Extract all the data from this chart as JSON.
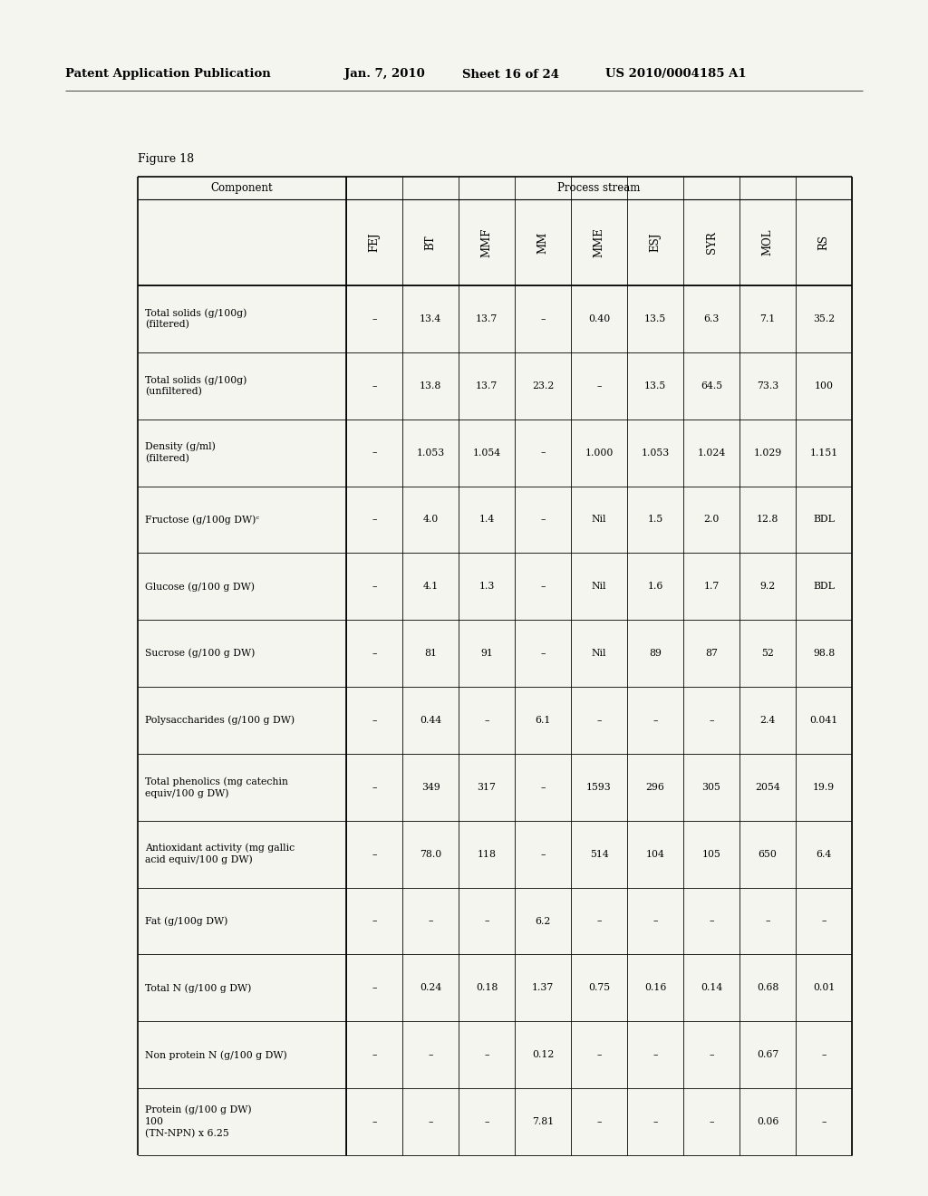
{
  "header_line1": "Patent Application Publication",
  "header_date": "Jan. 7, 2010",
  "header_sheet": "Sheet 16 of 24",
  "header_patent": "US 2010/0004185 A1",
  "figure_label": "Figure 18",
  "col_keys": [
    "FEJ",
    "BT",
    "MMF",
    "MM",
    "MME",
    "ESJ",
    "SYR",
    "MOL",
    "RS"
  ],
  "rows": [
    {
      "component_lines": [
        "Total solids (g/100g)",
        "(filtered)"
      ],
      "FEJ": "-",
      "BT": "13.4",
      "MMF": "13.7",
      "MM": "-",
      "MME": "0.40",
      "ESJ": "13.5",
      "SYR": "6.3",
      "MOL": "7.1",
      "RS": "35.2"
    },
    {
      "component_lines": [
        "Total solids (g/100g)",
        "(unfiltered)"
      ],
      "FEJ": "-",
      "BT": "13.8",
      "MMF": "13.7",
      "MM": "23.2",
      "MME": "-",
      "ESJ": "13.5",
      "SYR": "64.5",
      "MOL": "73.3",
      "RS": "100"
    },
    {
      "component_lines": [
        "Density (g/ml)",
        "(filtered)"
      ],
      "FEJ": "-",
      "BT": "1.053",
      "MMF": "1.054",
      "MM": "-",
      "MME": "1.000",
      "ESJ": "1.053",
      "SYR": "1.024",
      "MOL": "1.029",
      "RS": "1.151"
    },
    {
      "component_lines": [
        "Fructose (g/100g DW)ᶜ"
      ],
      "FEJ": "-",
      "BT": "4.0",
      "MMF": "1.4",
      "MM": "-",
      "MME": "Nil",
      "ESJ": "1.5",
      "SYR": "2.0",
      "MOL": "12.8",
      "RS": "BDL"
    },
    {
      "component_lines": [
        "Glucose (g/100 g DW)"
      ],
      "FEJ": "-",
      "BT": "4.1",
      "MMF": "1.3",
      "MM": "-",
      "MME": "Nil",
      "ESJ": "1.6",
      "SYR": "1.7",
      "MOL": "9.2",
      "RS": "BDL"
    },
    {
      "component_lines": [
        "Sucrose (g/100 g DW)"
      ],
      "FEJ": "-",
      "BT": "81",
      "MMF": "91",
      "MM": "-",
      "MME": "Nil",
      "ESJ": "89",
      "SYR": "87",
      "MOL": "52",
      "RS": "98.8"
    },
    {
      "component_lines": [
        "Polysaccharides (g/100 g DW)"
      ],
      "FEJ": "-",
      "BT": "0.44",
      "MMF": "-",
      "MM": "6.1",
      "MME": "-",
      "ESJ": "-",
      "SYR": "-",
      "MOL": "2.4",
      "RS": "0.041"
    },
    {
      "component_lines": [
        "Total phenolics (mg catechin",
        "equiv/100 g DW)"
      ],
      "FEJ": "-",
      "BT": "349",
      "MMF": "317",
      "MM": "-",
      "MME": "1593",
      "ESJ": "296",
      "SYR": "305",
      "MOL": "2054",
      "RS": "19.9"
    },
    {
      "component_lines": [
        "Antioxidant activity (mg gallic",
        "acid equiv/100 g DW)"
      ],
      "FEJ": "-",
      "BT": "78.0",
      "MMF": "118",
      "MM": "-",
      "MME": "514",
      "ESJ": "104",
      "SYR": "105",
      "MOL": "650",
      "RS": "6.4"
    },
    {
      "component_lines": [
        "Fat (g/100g DW)"
      ],
      "FEJ": "-",
      "BT": "-",
      "MMF": "-",
      "MM": "6.2",
      "MME": "-",
      "ESJ": "-",
      "SYR": "-",
      "MOL": "-",
      "RS": "-"
    },
    {
      "component_lines": [
        "Total N (g/100 g DW)"
      ],
      "FEJ": "-",
      "BT": "0.24",
      "MMF": "0.18",
      "MM": "1.37",
      "MME": "0.75",
      "ESJ": "0.16",
      "SYR": "0.14",
      "MOL": "0.68",
      "RS": "0.01"
    },
    {
      "component_lines": [
        "Non protein N (g/100 g DW)"
      ],
      "FEJ": "-",
      "BT": "-",
      "MMF": "-",
      "MM": "0.12",
      "MME": "-",
      "ESJ": "-",
      "SYR": "-",
      "MOL": "0.67",
      "RS": "-"
    },
    {
      "component_lines": [
        "Protein (g/100 g DW)",
        "100",
        "(TN-NPN) x 6.25"
      ],
      "FEJ": "-",
      "BT": "-",
      "MMF": "-",
      "MM": "7.81",
      "MME": "-",
      "ESJ": "-",
      "SYR": "-",
      "MOL": "0.06",
      "RS": "-"
    }
  ],
  "bg_color": "#f5f5f0",
  "page_bg": "#f5f5f0"
}
